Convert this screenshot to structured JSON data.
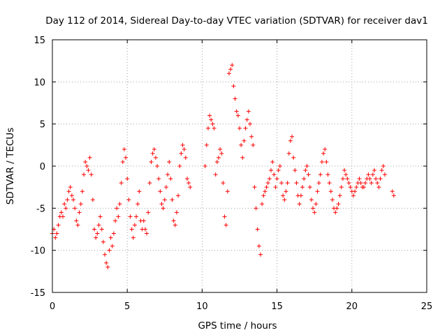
{
  "chart_data": {
    "type": "scatter",
    "title": "Day 112 of 2014, Sidereal Day-to-day VTEC variation (SDTVAR) for receiver dav1",
    "xlabel": "GPS time / hours",
    "ylabel": "SDTVAR / TECUs",
    "xlim": [
      0,
      25
    ],
    "ylim": [
      -15,
      15
    ],
    "xticks": [
      0,
      5,
      10,
      15,
      20,
      25
    ],
    "yticks": [
      -15,
      -10,
      -5,
      0,
      5,
      10,
      15
    ],
    "xtick_labels": [
      "0",
      "5",
      "10",
      "15",
      "20",
      "25"
    ],
    "ytick_labels": [
      "-15",
      "-10",
      "-5",
      "0",
      "5",
      "10",
      "15"
    ],
    "grid": true,
    "marker": "+",
    "color": "#ff0000",
    "series": [
      {
        "name": "SDTVAR",
        "x": [
          0.0,
          0.1,
          0.2,
          0.3,
          0.4,
          0.5,
          0.6,
          0.7,
          0.8,
          0.9,
          1.0,
          1.1,
          1.2,
          1.3,
          1.4,
          1.5,
          1.6,
          1.7,
          1.8,
          1.9,
          2.0,
          2.1,
          2.2,
          2.3,
          2.4,
          2.5,
          2.6,
          2.7,
          2.8,
          2.9,
          3.0,
          3.1,
          3.2,
          3.3,
          3.4,
          3.5,
          3.6,
          3.7,
          3.8,
          3.9,
          4.0,
          4.1,
          4.2,
          4.3,
          4.4,
          4.5,
          4.6,
          4.7,
          4.8,
          4.9,
          5.0,
          5.1,
          5.2,
          5.3,
          5.4,
          5.5,
          5.6,
          5.7,
          5.8,
          5.9,
          6.0,
          6.1,
          6.2,
          6.3,
          6.4,
          6.5,
          6.6,
          6.7,
          6.8,
          6.9,
          7.0,
          7.1,
          7.2,
          7.3,
          7.4,
          7.5,
          7.6,
          7.7,
          7.8,
          7.9,
          8.0,
          8.1,
          8.2,
          8.3,
          8.4,
          8.5,
          8.6,
          8.7,
          8.8,
          8.9,
          9.0,
          9.1,
          9.2,
          10.2,
          10.3,
          10.4,
          10.5,
          10.6,
          10.7,
          10.8,
          10.9,
          11.0,
          11.1,
          11.2,
          11.3,
          11.4,
          11.5,
          11.6,
          11.7,
          11.8,
          11.9,
          12.0,
          12.1,
          12.2,
          12.3,
          12.4,
          12.5,
          12.6,
          12.7,
          12.8,
          12.9,
          13.0,
          13.1,
          13.2,
          13.3,
          13.4,
          13.5,
          13.6,
          13.7,
          13.8,
          13.9,
          14.0,
          14.1,
          14.2,
          14.3,
          14.4,
          14.5,
          14.6,
          14.7,
          14.8,
          14.9,
          15.0,
          15.1,
          15.2,
          15.3,
          15.4,
          15.5,
          15.6,
          15.7,
          15.8,
          15.9,
          16.0,
          16.1,
          16.2,
          16.3,
          16.4,
          16.5,
          16.6,
          16.7,
          16.8,
          16.9,
          17.0,
          17.1,
          17.2,
          17.3,
          17.4,
          17.5,
          17.6,
          17.7,
          17.8,
          17.9,
          18.0,
          18.1,
          18.2,
          18.3,
          18.4,
          18.5,
          18.6,
          18.7,
          18.8,
          18.9,
          19.0,
          19.1,
          19.2,
          19.3,
          19.4,
          19.5,
          19.6,
          19.7,
          19.8,
          19.9,
          20.0,
          20.1,
          20.2,
          20.3,
          20.4,
          20.5,
          20.6,
          20.7,
          20.8,
          20.9,
          21.0,
          21.1,
          21.2,
          21.3,
          21.4,
          21.5,
          21.6,
          21.7,
          21.8,
          21.9,
          22.0,
          22.1,
          22.2,
          22.7,
          22.8
        ],
        "y": [
          -8.0,
          -7.5,
          -8.5,
          -8.0,
          -7.0,
          -6.0,
          -5.5,
          -6.0,
          -4.5,
          -5.0,
          -4.0,
          -3.0,
          -2.5,
          -3.5,
          -4.0,
          -5.0,
          -6.5,
          -7.0,
          -5.5,
          -4.5,
          -3.0,
          -1.0,
          0.5,
          0.0,
          -0.5,
          1.0,
          -1.0,
          -4.0,
          -7.5,
          -8.5,
          -8.0,
          -7.0,
          -6.0,
          -7.5,
          -9.0,
          -10.5,
          -11.5,
          -12.0,
          -10.0,
          -8.5,
          -9.5,
          -8.0,
          -6.5,
          -5.0,
          -6.0,
          -4.5,
          -2.0,
          0.5,
          2.0,
          1.0,
          -1.5,
          -4.0,
          -6.0,
          -7.5,
          -8.5,
          -7.0,
          -6.0,
          -4.5,
          -3.0,
          -6.5,
          -7.5,
          -6.5,
          -7.5,
          -8.0,
          -5.5,
          -2.0,
          0.5,
          1.5,
          2.0,
          1.0,
          0.0,
          -1.5,
          -3.0,
          -4.5,
          -5.0,
          -4.0,
          -2.5,
          -1.0,
          0.5,
          -1.5,
          -4.0,
          -6.5,
          -7.0,
          -5.5,
          -3.5,
          0.0,
          1.5,
          2.5,
          2.0,
          1.0,
          -1.5,
          -2.0,
          -2.5,
          0.0,
          2.5,
          4.5,
          6.0,
          5.5,
          5.0,
          4.5,
          -1.0,
          0.5,
          1.0,
          2.0,
          1.5,
          -2.0,
          -6.0,
          -7.0,
          -3.0,
          11.0,
          11.5,
          12.0,
          9.5,
          8.0,
          6.5,
          6.0,
          4.5,
          2.5,
          1.0,
          3.0,
          4.5,
          5.5,
          6.5,
          5.0,
          3.5,
          2.5,
          -2.5,
          -5.0,
          -7.5,
          -9.5,
          -10.5,
          -4.5,
          -3.5,
          -3.0,
          -2.5,
          -2.0,
          -1.5,
          -0.5,
          0.5,
          -1.0,
          -2.5,
          -1.5,
          -0.5,
          0.0,
          -2.0,
          -3.5,
          -4.0,
          -3.0,
          -2.0,
          1.5,
          3.0,
          3.5,
          1.0,
          -0.5,
          -2.0,
          -3.5,
          -4.5,
          -3.5,
          -2.5,
          -1.5,
          -0.5,
          0.0,
          -1.0,
          -2.5,
          -4.0,
          -5.0,
          -5.5,
          -4.5,
          -3.0,
          -2.0,
          -1.0,
          0.5,
          1.5,
          2.0,
          0.5,
          -1.0,
          -2.0,
          -3.0,
          -4.0,
          -5.0,
          -5.5,
          -5.0,
          -4.5,
          -3.5,
          -2.5,
          -1.5,
          -0.5,
          -1.0,
          -1.5,
          -2.0,
          -2.5,
          -3.0,
          -3.5,
          -3.0,
          -2.5,
          -2.0,
          -1.5,
          -2.0,
          -2.5,
          -2.5,
          -2.0,
          -1.5,
          -1.0,
          -1.5,
          -2.0,
          -1.0,
          -0.5,
          -1.5,
          -2.0,
          -2.5,
          -1.5,
          -0.5,
          0.0,
          -1.0,
          -3.0,
          -3.5
        ]
      }
    ]
  }
}
